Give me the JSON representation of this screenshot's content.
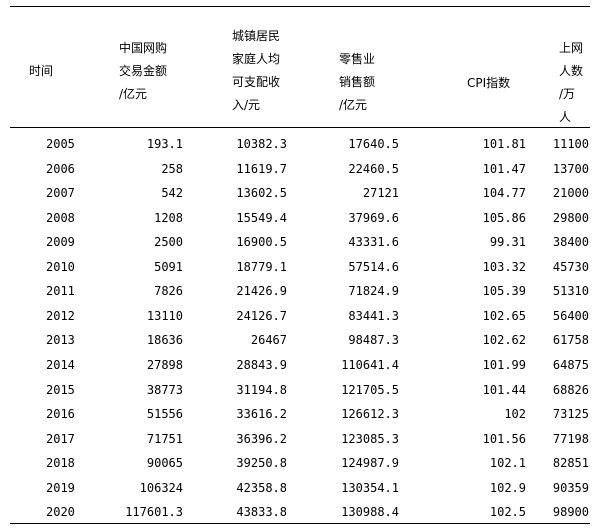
{
  "headers": [
    {
      "key": "time",
      "lines": [
        "时间"
      ]
    },
    {
      "key": "gmv",
      "lines": [
        "中国网购",
        "交易金额",
        "/亿元"
      ]
    },
    {
      "key": "income",
      "lines": [
        "城镇居民",
        "家庭人均",
        "可支配收",
        "入/元"
      ]
    },
    {
      "key": "retail",
      "lines": [
        "零售业",
        "销售额",
        "/亿元"
      ]
    },
    {
      "key": "cpi",
      "lines": [
        "CPI指数"
      ]
    },
    {
      "key": "netizens",
      "lines": [
        "上网",
        "人数",
        "/万",
        "人"
      ]
    }
  ],
  "rows": [
    [
      "2005",
      "193.1",
      "10382.3",
      "17640.5",
      "101.81",
      "11100"
    ],
    [
      "2006",
      "258",
      "11619.7",
      "22460.5",
      "101.47",
      "13700"
    ],
    [
      "2007",
      "542",
      "13602.5",
      "27121",
      "104.77",
      "21000"
    ],
    [
      "2008",
      "1208",
      "15549.4",
      "37969.6",
      "105.86",
      "29800"
    ],
    [
      "2009",
      "2500",
      "16900.5",
      "43331.6",
      "99.31",
      "38400"
    ],
    [
      "2010",
      "5091",
      "18779.1",
      "57514.6",
      "103.32",
      "45730"
    ],
    [
      "2011",
      "7826",
      "21426.9",
      "71824.9",
      "105.39",
      "51310"
    ],
    [
      "2012",
      "13110",
      "24126.7",
      "83441.3",
      "102.65",
      "56400"
    ],
    [
      "2013",
      "18636",
      "26467",
      "98487.3",
      "102.62",
      "61758"
    ],
    [
      "2014",
      "27898",
      "28843.9",
      "110641.4",
      "101.99",
      "64875"
    ],
    [
      "2015",
      "38773",
      "31194.8",
      "121705.5",
      "101.44",
      "68826"
    ],
    [
      "2016",
      "51556",
      "33616.2",
      "126612.3",
      "102",
      "73125"
    ],
    [
      "2017",
      "71751",
      "36396.2",
      "123085.3",
      "101.56",
      "77198"
    ],
    [
      "2018",
      "90065",
      "39250.8",
      "124987.9",
      "102.1",
      "82851"
    ],
    [
      "2019",
      "106324",
      "42358.8",
      "130354.1",
      "102.9",
      "90359"
    ],
    [
      "2020",
      "117601.3",
      "43833.8",
      "130988.4",
      "102.5",
      "98900"
    ]
  ]
}
